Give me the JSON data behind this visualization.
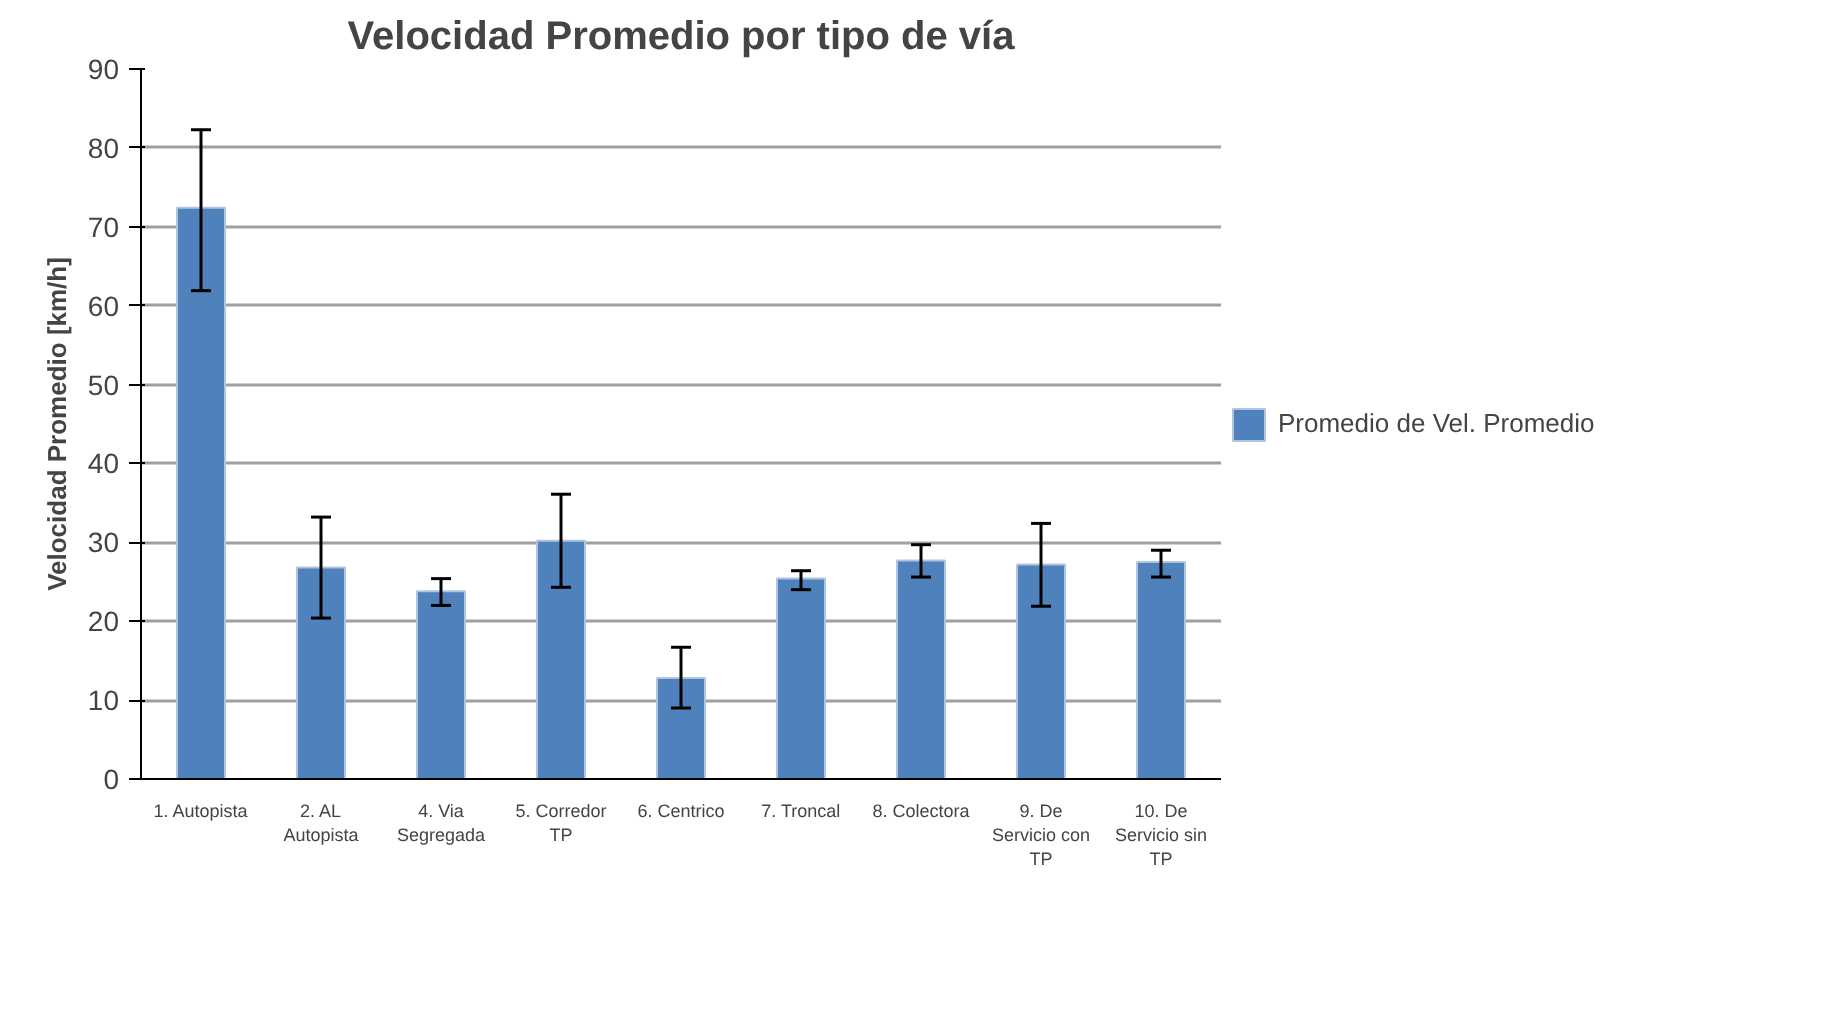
{
  "chart_data": {
    "type": "bar",
    "title": "Velocidad Promedio por tipo de vía",
    "ylabel": "Velocidad Promedio [km/h]",
    "categories": [
      "1. Autopista",
      "2. AL Autopista",
      "4. Via Segregada",
      "5. Corredor TP",
      "6. Centrico",
      "7. Troncal",
      "8. Colectora",
      "9. De Servicio con TP",
      "10. De Servicio sin TP"
    ],
    "series": [
      {
        "name": "Promedio de Vel. Promedio",
        "color": "#4f81bd",
        "values": [
          72.4,
          26.8,
          23.8,
          30.2,
          12.8,
          25.4,
          27.7,
          27.2,
          27.5
        ],
        "errors": [
          [
            61.9,
            82.3
          ],
          [
            20.4,
            33.2
          ],
          [
            22.0,
            25.4
          ],
          [
            24.3,
            36.1
          ],
          [
            9.0,
            16.7
          ],
          [
            24.0,
            26.4
          ],
          [
            25.6,
            29.7
          ],
          [
            21.9,
            32.4
          ],
          [
            25.6,
            29.0
          ]
        ]
      }
    ],
    "ylim": [
      0,
      90
    ],
    "yticks": [
      0,
      10,
      20,
      30,
      40,
      50,
      60,
      70,
      80,
      90
    ],
    "grid": "y",
    "legend": "right"
  }
}
